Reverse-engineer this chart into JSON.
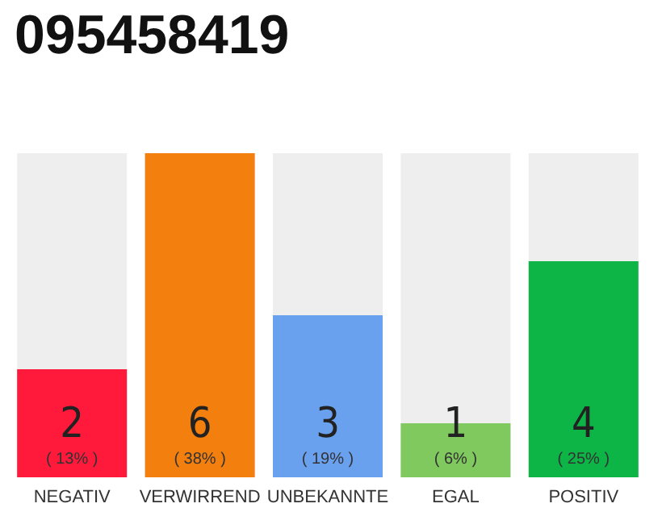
{
  "chart_data": {
    "type": "bar",
    "title": "095458419",
    "categories": [
      "NEGATIV",
      "VERWIRREND",
      "UNBEKANNTE",
      "EGAL",
      "POSITIV"
    ],
    "values": [
      2,
      6,
      3,
      1,
      4
    ],
    "colors": [
      "#ff1a3c",
      "#f37f0e",
      "#6aa1ef",
      "#7fc95f",
      "#0db446"
    ],
    "value_labels": [
      "2\n( 13% )",
      "6\n( 38% )",
      "3\n( 19% )",
      "1\n( 6% )",
      "4\n( 25% )"
    ]
  }
}
